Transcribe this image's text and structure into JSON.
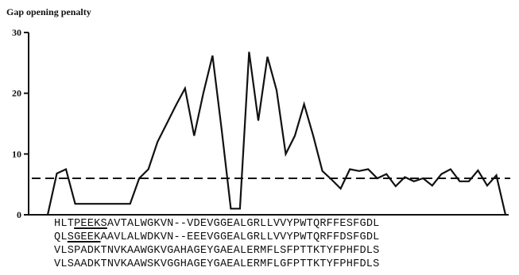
{
  "chart_data": {
    "type": "line",
    "ylabel": "Gap opening penalty",
    "ylim": [
      0,
      30
    ],
    "yticks": [
      0,
      10,
      20,
      30
    ],
    "threshold": 6,
    "values": [
      0,
      6.8,
      7.5,
      1.8,
      1.8,
      1.8,
      1.8,
      1.8,
      1.8,
      1.8,
      6,
      7.5,
      12,
      15,
      18,
      20.8,
      13,
      20,
      26.2,
      14,
      1,
      1,
      26.8,
      15.5,
      26,
      20.5,
      10,
      13,
      18.2,
      13,
      7.2,
      5.8,
      4.3,
      7.5,
      7.2,
      7.5,
      6,
      6.7,
      4.7,
      6.2,
      5.5,
      6,
      4.8,
      6.7,
      7.5,
      5.5,
      5.5,
      7.3,
      4.8,
      6.5,
      0
    ]
  },
  "sequences": [
    {
      "pre": "HLT",
      "ul": "PEEKS",
      "post": "AVTALWGKVN--VDEVGGEALGRLLVVYPWTQRFFESFGDL"
    },
    {
      "pre": "QL",
      "ul": "SGEEK",
      "post": "AAVLALWDKVN--EEEVGGEALGRLLVVYPWTQRFFDSFGDL"
    },
    {
      "pre": "VLSPADKTNVKAAWGKVGAHAGEYGAEALERMFLSFPTTKTYFPHFDLS",
      "ul": "",
      "post": ""
    },
    {
      "pre": "VLSAADKTNVKAAWSKVGGHAGEYGAEALERMFLGFPTTKTYFPHFDLS",
      "ul": "",
      "post": ""
    }
  ]
}
